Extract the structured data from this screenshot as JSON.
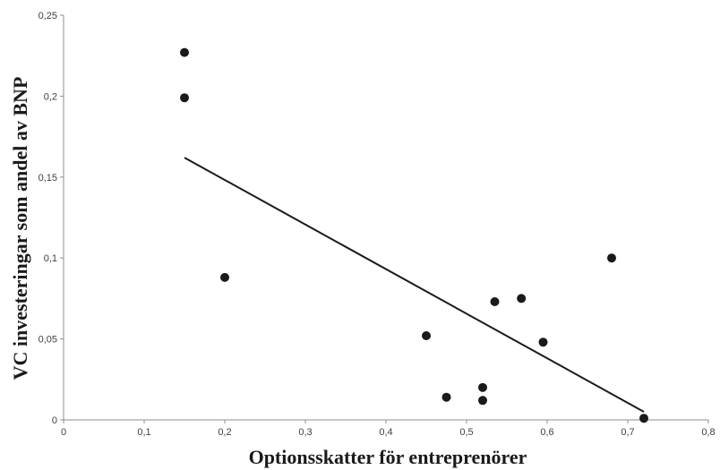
{
  "chart_data": {
    "type": "scatter",
    "title": "",
    "xlabel": "Optionsskatter för entreprenörer",
    "ylabel": "VC investeringar som andel av BNP",
    "xlim": [
      0,
      0.8
    ],
    "ylim": [
      0,
      0.25
    ],
    "x_ticks": [
      "0",
      "0,1",
      "0,2",
      "0,3",
      "0,4",
      "0,5",
      "0,6",
      "0,7",
      "0,8"
    ],
    "y_ticks": [
      "0",
      "0,05",
      "0,1",
      "0,15",
      "0,2",
      "0,25"
    ],
    "grid": false,
    "legend": "none",
    "points": [
      {
        "x": 0.15,
        "y": 0.227
      },
      {
        "x": 0.15,
        "y": 0.199
      },
      {
        "x": 0.2,
        "y": 0.088
      },
      {
        "x": 0.45,
        "y": 0.052
      },
      {
        "x": 0.475,
        "y": 0.014
      },
      {
        "x": 0.52,
        "y": 0.02
      },
      {
        "x": 0.52,
        "y": 0.012
      },
      {
        "x": 0.535,
        "y": 0.073
      },
      {
        "x": 0.568,
        "y": 0.075
      },
      {
        "x": 0.595,
        "y": 0.048
      },
      {
        "x": 0.68,
        "y": 0.1
      },
      {
        "x": 0.72,
        "y": 0.001
      }
    ],
    "trendline": {
      "x": [
        0.15,
        0.72
      ],
      "y": [
        0.162,
        0.005
      ]
    },
    "colors": {
      "points": "#1a1a1a",
      "trendline": "#1a1a1a",
      "axis": "#8c8c8c"
    }
  }
}
